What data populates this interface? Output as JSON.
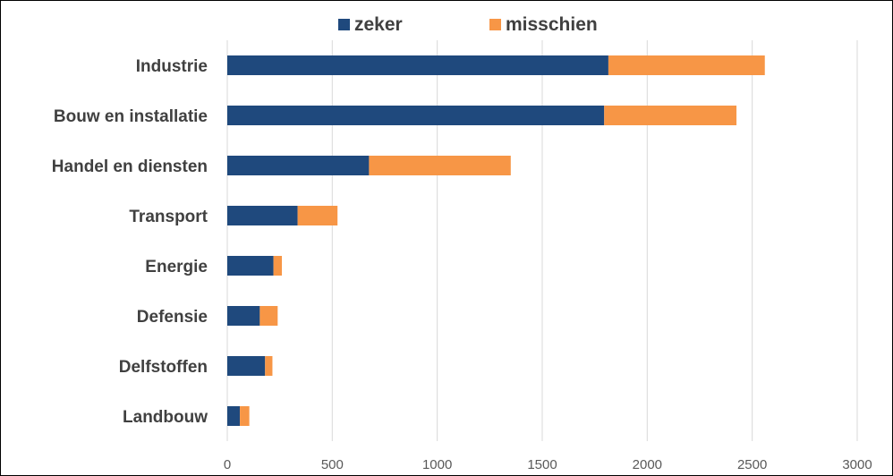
{
  "chart_data": {
    "type": "bar",
    "orientation": "horizontal",
    "stacked": true,
    "title": "",
    "xlabel": "",
    "ylabel": "",
    "categories": [
      "Industrie",
      "Bouw en installatie",
      "Handel en diensten",
      "Transport",
      "Energie",
      "Defensie",
      "Delfstoffen",
      "Landbouw"
    ],
    "series": [
      {
        "name": "zeker",
        "color": "#1F497D",
        "values": [
          1815,
          1795,
          675,
          335,
          220,
          155,
          180,
          60
        ]
      },
      {
        "name": "misschien",
        "color": "#F79646",
        "values": [
          745,
          630,
          675,
          190,
          40,
          85,
          35,
          45
        ]
      }
    ],
    "xlim": [
      0,
      3000
    ],
    "xticks": [
      "0",
      "500",
      "1000",
      "1500",
      "2000",
      "2500",
      "3000"
    ],
    "grid": true,
    "legend_position": "top"
  }
}
